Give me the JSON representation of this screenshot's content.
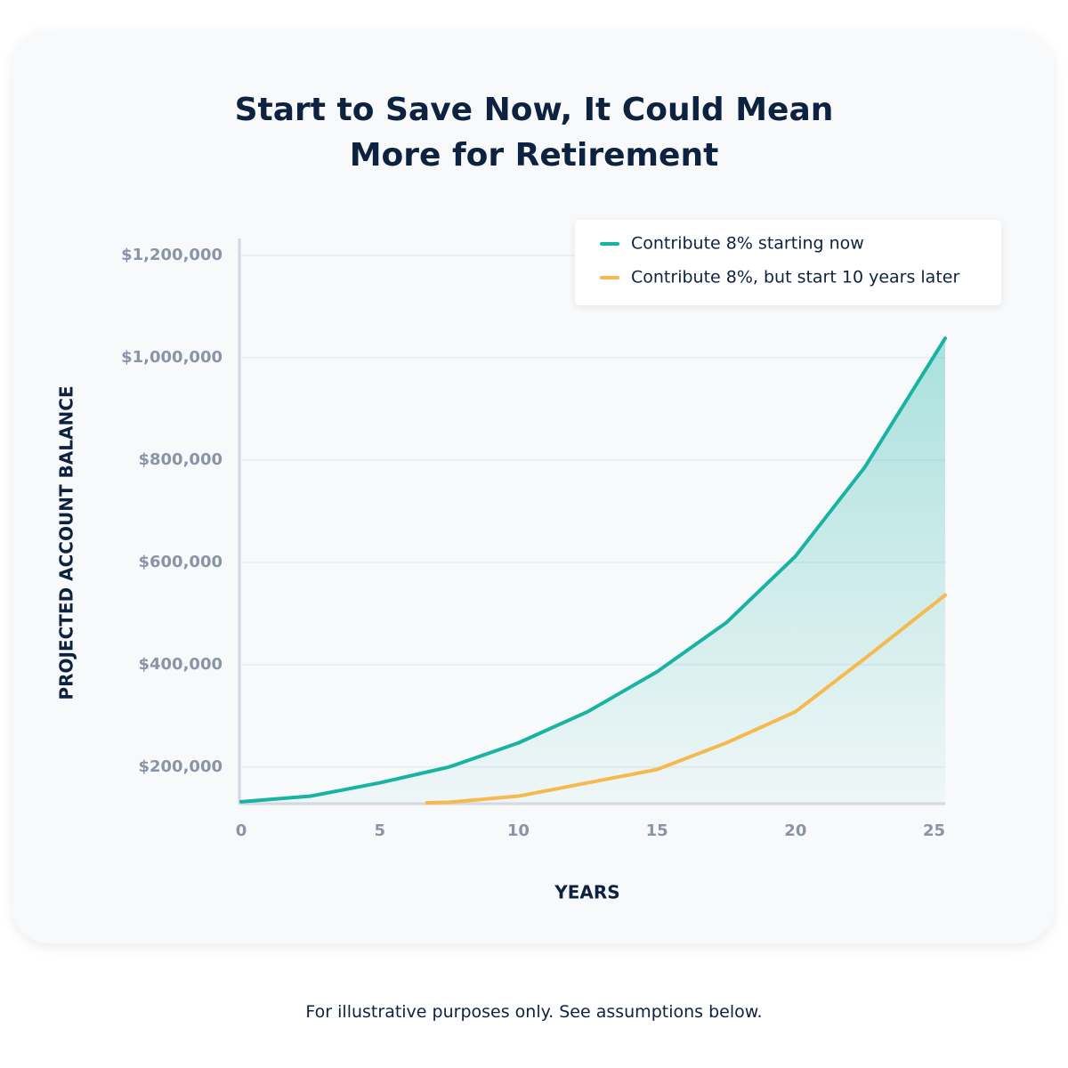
{
  "chart_data": {
    "type": "line",
    "title": "Start to Save Now, It Could Mean More for Retirement",
    "x_label": "YEARS",
    "y_label": "PROJECTED ACCOUNT BALANCE",
    "footnote": "For illustrative purposes only. See assumptions below.",
    "x": [
      0,
      2.5,
      5,
      6.7,
      7.5,
      10,
      12.5,
      15,
      17.5,
      20,
      22.5,
      25.4
    ],
    "series": [
      {
        "name": "Contribute 8% starting now",
        "color": "#19b3a4",
        "values": [
          132000,
          143000,
          169000,
          190000,
          200000,
          247000,
          308000,
          386000,
          482000,
          612000,
          786000,
          1038000
        ]
      },
      {
        "name": "Contribute 8%, but start 10 years later",
        "color": "#f5b94f",
        "values": [
          null,
          null,
          null,
          130000,
          131000,
          143000,
          169000,
          195000,
          247000,
          308000,
          412000,
          536000
        ]
      }
    ],
    "xlim": [
      0,
      25.4
    ],
    "xticks": [
      0,
      5,
      10,
      15,
      20,
      25
    ],
    "ylim": [
      130000,
      1233000
    ],
    "yticks": [
      {
        "value": 200000,
        "label": "$200,000"
      },
      {
        "value": 400000,
        "label": "$400,000"
      },
      {
        "value": 600000,
        "label": "$600,000"
      },
      {
        "value": 800000,
        "label": "$800,000"
      },
      {
        "value": 1000000,
        "label": "$1,000,000"
      },
      {
        "value": 1200000,
        "label": "$1,200,000"
      }
    ],
    "grid": true
  }
}
